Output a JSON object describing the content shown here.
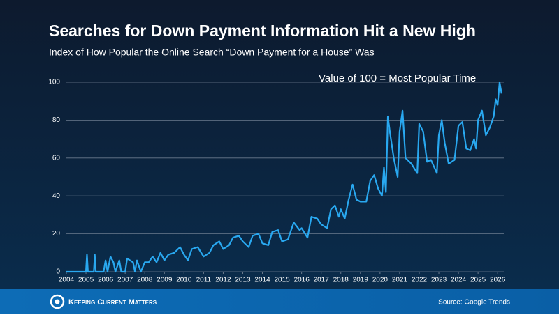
{
  "chart_data": {
    "type": "line",
    "title": "Searches for Down Payment Information Hit a New High",
    "subtitle": "Index of How Popular the Online Search “Down Payment for a House” Was",
    "annotation": "Value of 100 = Most Popular Time",
    "source": "Source: Google Trends",
    "x": [
      2004.0,
      2004.9,
      2005.0,
      2005.05,
      2005.1,
      2005.4,
      2005.45,
      2005.5,
      2005.9,
      2006.0,
      2006.1,
      2006.25,
      2006.4,
      2006.5,
      2006.7,
      2006.8,
      2007.0,
      2007.1,
      2007.4,
      2007.5,
      2007.6,
      2007.8,
      2008.0,
      2008.2,
      2008.4,
      2008.6,
      2008.8,
      2009.0,
      2009.2,
      2009.5,
      2009.8,
      2010.0,
      2010.2,
      2010.4,
      2010.7,
      2011.0,
      2011.3,
      2011.5,
      2011.8,
      2012.0,
      2012.3,
      2012.5,
      2012.8,
      2013.0,
      2013.3,
      2013.5,
      2013.8,
      2014.0,
      2014.3,
      2014.5,
      2014.8,
      2015.0,
      2015.3,
      2015.6,
      2015.9,
      2016.0,
      2016.3,
      2016.5,
      2016.8,
      2017.0,
      2017.3,
      2017.5,
      2017.7,
      2017.9,
      2018.0,
      2018.2,
      2018.4,
      2018.6,
      2018.8,
      2019.0,
      2019.3,
      2019.5,
      2019.7,
      2019.9,
      2020.1,
      2020.2,
      2020.3,
      2020.4,
      2020.5,
      2020.7,
      2020.9,
      2021.0,
      2021.15,
      2021.3,
      2021.6,
      2021.9,
      2022.0,
      2022.2,
      2022.4,
      2022.6,
      2022.9,
      2023.0,
      2023.15,
      2023.3,
      2023.5,
      2023.8,
      2024.0,
      2024.2,
      2024.4,
      2024.6,
      2024.8,
      2024.9,
      2025.0,
      2025.2,
      2025.4,
      2025.6,
      2025.8,
      2025.9,
      2026.0,
      2026.1,
      2026.2
    ],
    "series": [
      {
        "name": "Searches",
        "color": "#29a8f0",
        "values": [
          0,
          0,
          0,
          9,
          0,
          0,
          9,
          0,
          0,
          6,
          0,
          8,
          5,
          0,
          6,
          0,
          0,
          7,
          5,
          0,
          6,
          0,
          5,
          5,
          8,
          5,
          10,
          6,
          9,
          10,
          13,
          9,
          6,
          12,
          13,
          8,
          10,
          14,
          16,
          12,
          14,
          18,
          19,
          16,
          13,
          19,
          20,
          15,
          14,
          21,
          22,
          16,
          17,
          26,
          22,
          23,
          18,
          29,
          28,
          25,
          23,
          33,
          35,
          29,
          33,
          28,
          38,
          46,
          38,
          37,
          37,
          48,
          51,
          44,
          40,
          55,
          42,
          82,
          74,
          60,
          50,
          74,
          85,
          60,
          57,
          52,
          78,
          74,
          58,
          59,
          52,
          72,
          80,
          68,
          57,
          59,
          77,
          79,
          65,
          64,
          70,
          65,
          80,
          85,
          72,
          76,
          82,
          91,
          88,
          100,
          94
        ]
      }
    ],
    "xlim": [
      2004,
      2026.35
    ],
    "xticks": [
      2004,
      2005,
      2006,
      2007,
      2008,
      2009,
      2010,
      2011,
      2012,
      2013,
      2014,
      2015,
      2016,
      2017,
      2018,
      2019,
      2020,
      2021,
      2022,
      2023,
      2024,
      2025,
      2026
    ],
    "ylim": [
      0,
      100
    ],
    "yticks": [
      0,
      20,
      40,
      60,
      80,
      100
    ],
    "grid": true
  },
  "brand": "Keeping Current Matters"
}
